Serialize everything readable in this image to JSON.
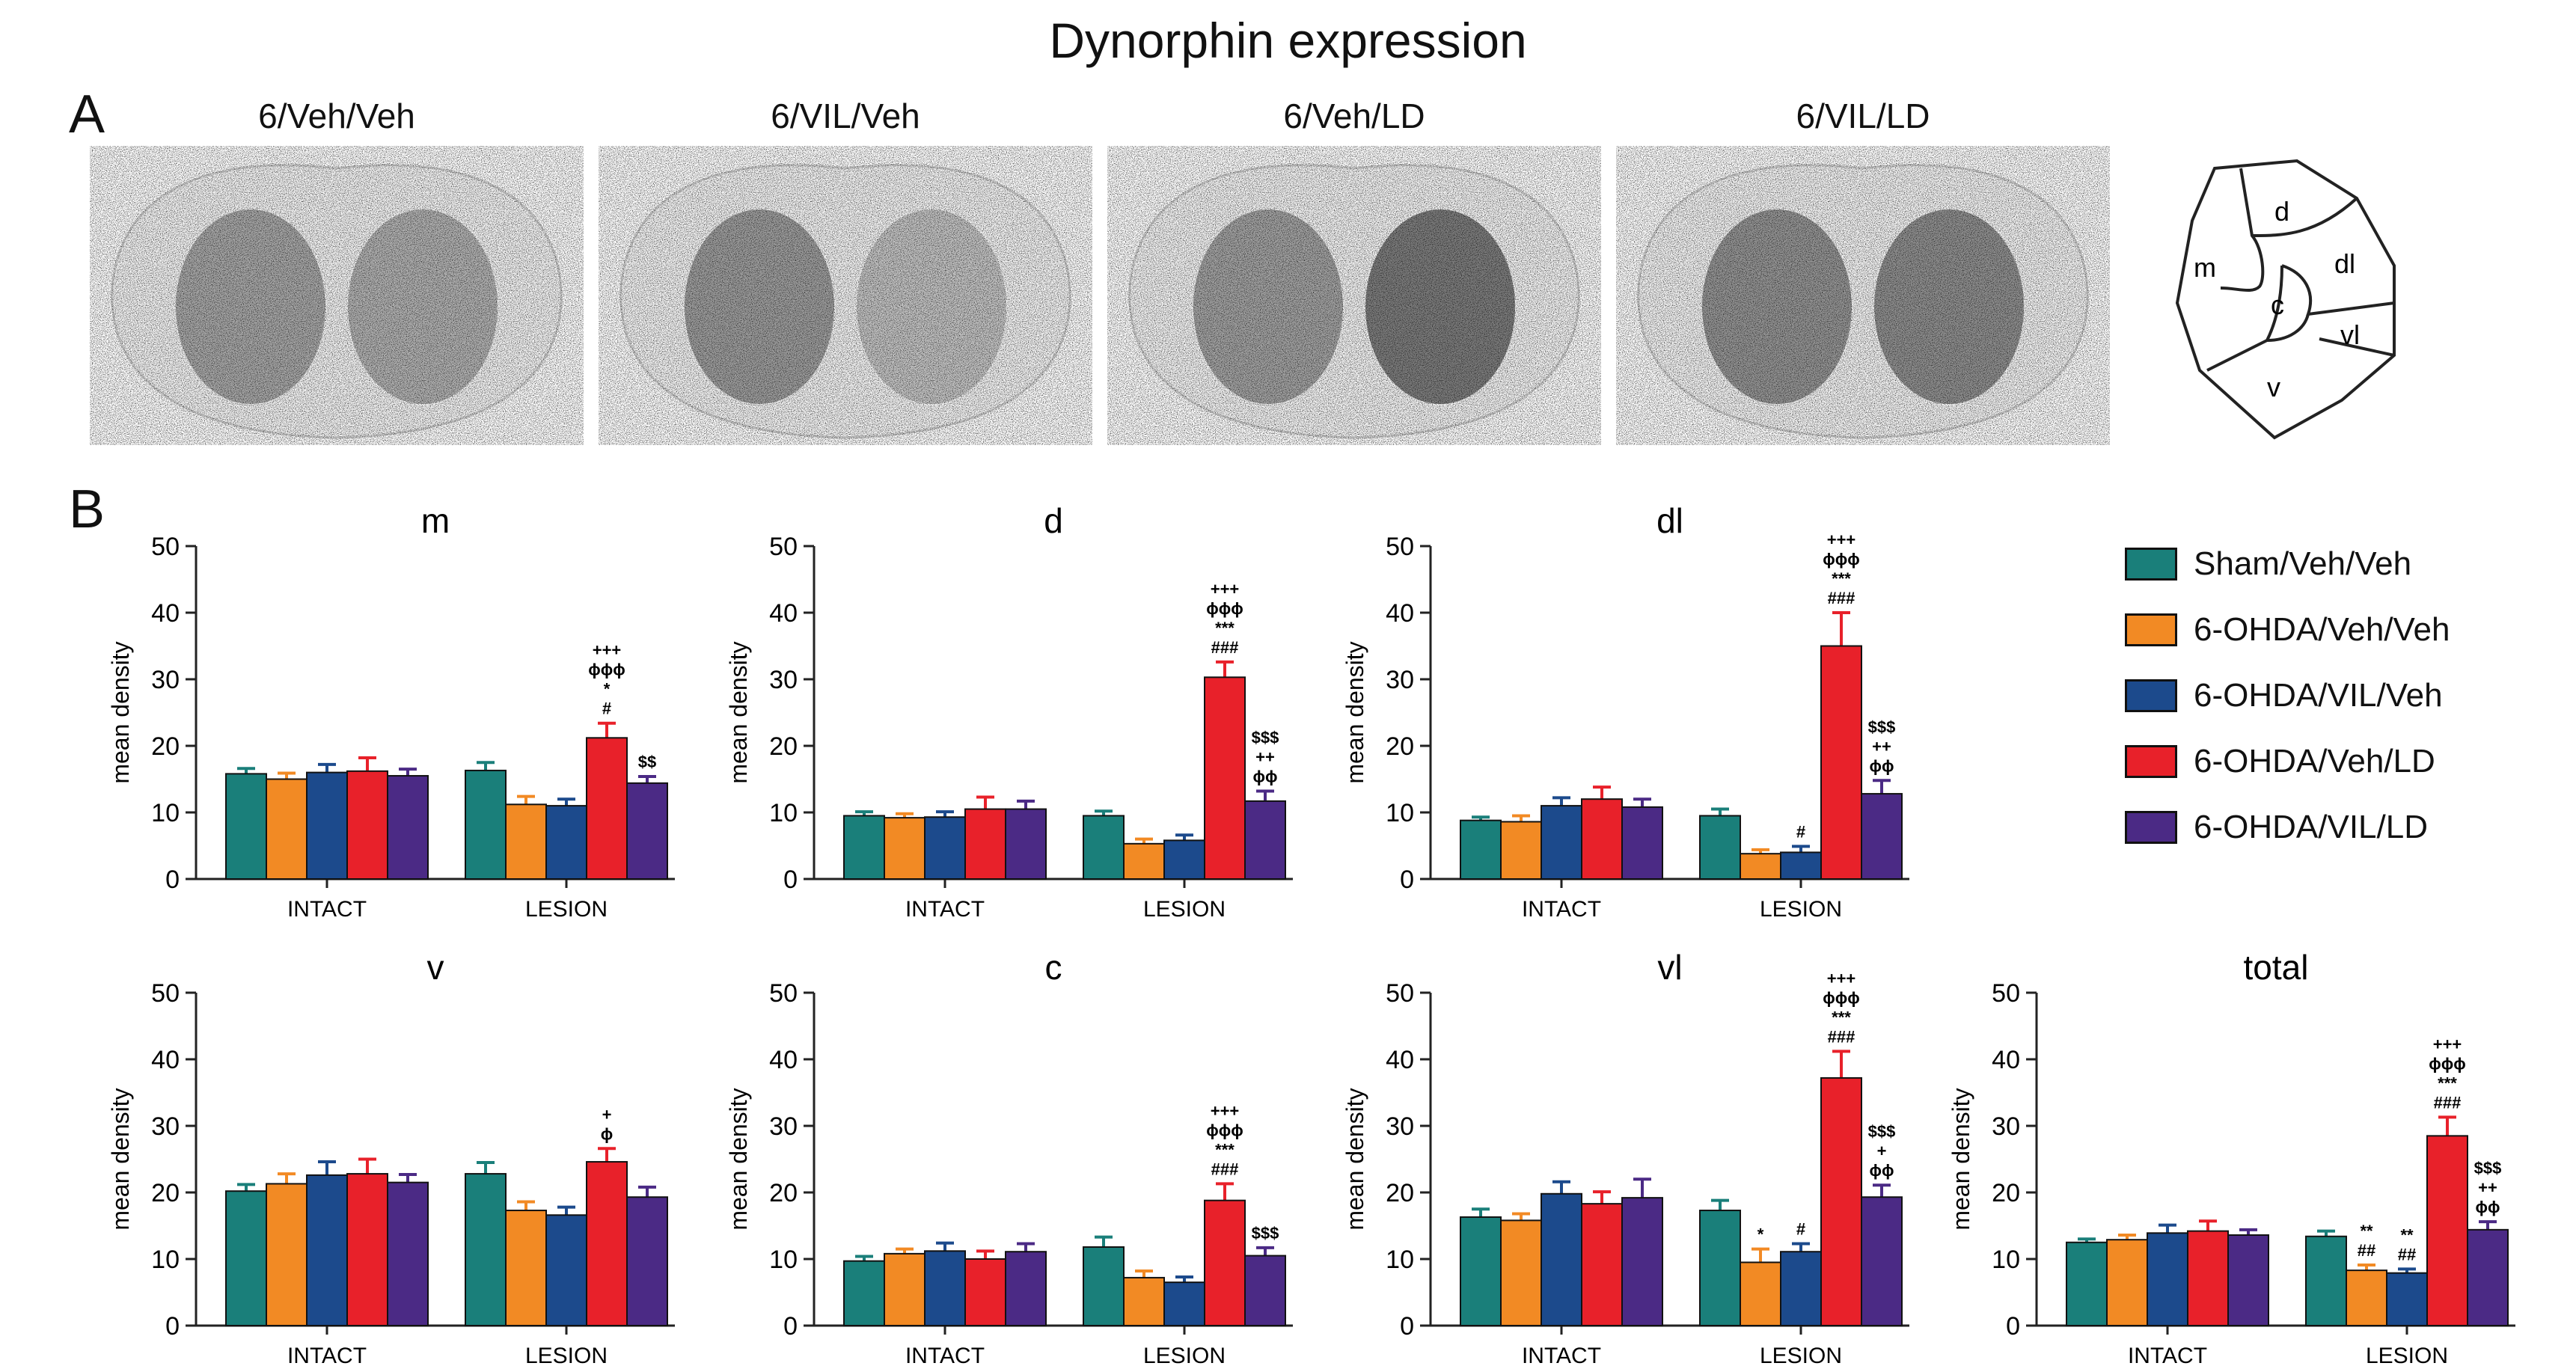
{
  "title": "Dynorphin expression",
  "panel_labels": {
    "a": "A",
    "b": "B"
  },
  "images": [
    {
      "label": "6/Veh/Veh",
      "left_intensity": 0.55,
      "right_intensity": 0.45
    },
    {
      "label": "6/VIL/Veh",
      "left_intensity": 0.65,
      "right_intensity": 0.25
    },
    {
      "label": "6/Veh/LD",
      "left_intensity": 0.6,
      "right_intensity": 1.0
    },
    {
      "label": "6/VIL/LD",
      "left_intensity": 0.75,
      "right_intensity": 0.8
    }
  ],
  "schematic": {
    "regions": [
      "m",
      "d",
      "dl",
      "c",
      "vl",
      "v"
    ]
  },
  "legend": [
    {
      "label": "Sham/Veh/Veh",
      "color": "#1a7f7a"
    },
    {
      "label": "6-OHDA/Veh/Veh",
      "color": "#f28a24"
    },
    {
      "label": "6-OHDA/VIL/Veh",
      "color": "#1c4a8c"
    },
    {
      "label": "6-OHDA/Veh/LD",
      "color": "#e8212a"
    },
    {
      "label": "6-OHDA/VIL/LD",
      "color": "#4b2a85"
    }
  ],
  "chart_data": [
    {
      "type": "bar",
      "title": "m",
      "ylabel": "mean density",
      "ylim": [
        0,
        50
      ],
      "yticks": [
        "0",
        "10",
        "20",
        "30",
        "40",
        "50"
      ],
      "categories": [
        "INTACT",
        "LESION"
      ],
      "series": [
        {
          "name": "Sham/Veh/Veh",
          "values": [
            15.8,
            16.3
          ],
          "err": [
            0.8,
            1.2
          ]
        },
        {
          "name": "6-OHDA/Veh/Veh",
          "values": [
            15.0,
            11.2
          ],
          "err": [
            0.9,
            1.2
          ]
        },
        {
          "name": "6-OHDA/VIL/Veh",
          "values": [
            16.0,
            11.0
          ],
          "err": [
            1.2,
            1.0
          ]
        },
        {
          "name": "6-OHDA/Veh/LD",
          "values": [
            16.2,
            21.2
          ],
          "err": [
            2.0,
            2.2
          ]
        },
        {
          "name": "6-OHDA/VIL/LD",
          "values": [
            15.5,
            14.4
          ],
          "err": [
            1.0,
            1.0
          ]
        }
      ],
      "annotations": [
        {
          "category": 1,
          "series": 3,
          "lines": [
            "+++",
            "ϕϕϕ",
            "*",
            "#"
          ]
        },
        {
          "category": 1,
          "series": 4,
          "lines": [
            "$$"
          ]
        }
      ]
    },
    {
      "type": "bar",
      "title": "d",
      "ylabel": "mean density",
      "ylim": [
        0,
        50
      ],
      "yticks": [
        "0",
        "10",
        "20",
        "30",
        "40",
        "50"
      ],
      "categories": [
        "INTACT",
        "LESION"
      ],
      "series": [
        {
          "name": "Sham/Veh/Veh",
          "values": [
            9.5,
            9.5
          ],
          "err": [
            0.6,
            0.7
          ]
        },
        {
          "name": "6-OHDA/Veh/Veh",
          "values": [
            9.2,
            5.3
          ],
          "err": [
            0.6,
            0.7
          ]
        },
        {
          "name": "6-OHDA/VIL/Veh",
          "values": [
            9.3,
            5.8
          ],
          "err": [
            0.8,
            0.8
          ]
        },
        {
          "name": "6-OHDA/Veh/LD",
          "values": [
            10.5,
            30.3
          ],
          "err": [
            1.8,
            2.3
          ]
        },
        {
          "name": "6-OHDA/VIL/LD",
          "values": [
            10.5,
            11.7
          ],
          "err": [
            1.2,
            1.5
          ]
        }
      ],
      "annotations": [
        {
          "category": 1,
          "series": 3,
          "lines": [
            "+++",
            "ϕϕϕ",
            "***",
            "###"
          ]
        },
        {
          "category": 1,
          "series": 4,
          "lines": [
            "$$$",
            "++",
            "ϕϕ"
          ]
        }
      ]
    },
    {
      "type": "bar",
      "title": "dl",
      "ylabel": "mean density",
      "ylim": [
        0,
        50
      ],
      "yticks": [
        "0",
        "10",
        "20",
        "30",
        "40",
        "50"
      ],
      "categories": [
        "INTACT",
        "LESION"
      ],
      "series": [
        {
          "name": "Sham/Veh/Veh",
          "values": [
            8.8,
            9.5
          ],
          "err": [
            0.5,
            1.0
          ]
        },
        {
          "name": "6-OHDA/Veh/Veh",
          "values": [
            8.6,
            3.8
          ],
          "err": [
            0.9,
            0.6
          ]
        },
        {
          "name": "6-OHDA/VIL/Veh",
          "values": [
            11.0,
            4.0
          ],
          "err": [
            1.2,
            0.9
          ]
        },
        {
          "name": "6-OHDA/Veh/LD",
          "values": [
            12.0,
            35.0
          ],
          "err": [
            1.8,
            5.0
          ]
        },
        {
          "name": "6-OHDA/VIL/LD",
          "values": [
            10.8,
            12.8
          ],
          "err": [
            1.2,
            2.0
          ]
        }
      ],
      "annotations": [
        {
          "category": 1,
          "series": 2,
          "lines": [
            "#"
          ]
        },
        {
          "category": 1,
          "series": 3,
          "lines": [
            "+++",
            "ϕϕϕ",
            "***",
            "###"
          ]
        },
        {
          "category": 1,
          "series": 4,
          "lines": [
            "$$$",
            "++",
            "ϕϕ"
          ]
        }
      ]
    },
    {
      "type": "bar",
      "title": "v",
      "ylabel": "mean density",
      "ylim": [
        0,
        50
      ],
      "yticks": [
        "0",
        "10",
        "20",
        "30",
        "40",
        "50"
      ],
      "categories": [
        "INTACT",
        "LESION"
      ],
      "series": [
        {
          "name": "Sham/Veh/Veh",
          "values": [
            20.2,
            22.8
          ],
          "err": [
            1.0,
            1.7
          ]
        },
        {
          "name": "6-OHDA/Veh/Veh",
          "values": [
            21.3,
            17.3
          ],
          "err": [
            1.5,
            1.3
          ]
        },
        {
          "name": "6-OHDA/VIL/Veh",
          "values": [
            22.6,
            16.6
          ],
          "err": [
            2.0,
            1.2
          ]
        },
        {
          "name": "6-OHDA/Veh/LD",
          "values": [
            22.8,
            24.6
          ],
          "err": [
            2.2,
            2.0
          ]
        },
        {
          "name": "6-OHDA/VIL/LD",
          "values": [
            21.5,
            19.3
          ],
          "err": [
            1.2,
            1.5
          ]
        }
      ],
      "annotations": [
        {
          "category": 1,
          "series": 3,
          "lines": [
            "+",
            "ϕ"
          ]
        }
      ]
    },
    {
      "type": "bar",
      "title": "c",
      "ylabel": "mean density",
      "ylim": [
        0,
        50
      ],
      "yticks": [
        "0",
        "10",
        "20",
        "30",
        "40",
        "50"
      ],
      "categories": [
        "INTACT",
        "LESION"
      ],
      "series": [
        {
          "name": "Sham/Veh/Veh",
          "values": [
            9.7,
            11.8
          ],
          "err": [
            0.7,
            1.5
          ]
        },
        {
          "name": "6-OHDA/Veh/Veh",
          "values": [
            10.8,
            7.2
          ],
          "err": [
            0.7,
            1.0
          ]
        },
        {
          "name": "6-OHDA/VIL/Veh",
          "values": [
            11.2,
            6.5
          ],
          "err": [
            1.2,
            0.8
          ]
        },
        {
          "name": "6-OHDA/Veh/LD",
          "values": [
            10.0,
            18.8
          ],
          "err": [
            1.2,
            2.5
          ]
        },
        {
          "name": "6-OHDA/VIL/LD",
          "values": [
            11.1,
            10.5
          ],
          "err": [
            1.2,
            1.2
          ]
        }
      ],
      "annotations": [
        {
          "category": 1,
          "series": 3,
          "lines": [
            "+++",
            "ϕϕϕ",
            "***",
            "###"
          ]
        },
        {
          "category": 1,
          "series": 4,
          "lines": [
            "$$$"
          ]
        }
      ]
    },
    {
      "type": "bar",
      "title": "vl",
      "ylabel": "mean density",
      "ylim": [
        0,
        50
      ],
      "yticks": [
        "0",
        "10",
        "20",
        "30",
        "40",
        "50"
      ],
      "categories": [
        "INTACT",
        "LESION"
      ],
      "series": [
        {
          "name": "Sham/Veh/Veh",
          "values": [
            16.3,
            17.3
          ],
          "err": [
            1.2,
            1.5
          ]
        },
        {
          "name": "6-OHDA/Veh/Veh",
          "values": [
            15.8,
            9.5
          ],
          "err": [
            1.0,
            2.0
          ]
        },
        {
          "name": "6-OHDA/VIL/Veh",
          "values": [
            19.8,
            11.1
          ],
          "err": [
            1.8,
            1.2
          ]
        },
        {
          "name": "6-OHDA/Veh/LD",
          "values": [
            18.3,
            37.2
          ],
          "err": [
            1.8,
            4.0
          ]
        },
        {
          "name": "6-OHDA/VIL/LD",
          "values": [
            19.2,
            19.3
          ],
          "err": [
            2.8,
            1.8
          ]
        }
      ],
      "annotations": [
        {
          "category": 1,
          "series": 1,
          "lines": [
            "*"
          ]
        },
        {
          "category": 1,
          "series": 2,
          "lines": [
            "#"
          ]
        },
        {
          "category": 1,
          "series": 3,
          "lines": [
            "+++",
            "ϕϕϕ",
            "***",
            "###"
          ]
        },
        {
          "category": 1,
          "series": 4,
          "lines": [
            "$$$",
            "+",
            "ϕϕ"
          ]
        }
      ]
    },
    {
      "type": "bar",
      "title": "total",
      "ylabel": "mean density",
      "ylim": [
        0,
        50
      ],
      "yticks": [
        "0",
        "10",
        "20",
        "30",
        "40",
        "50"
      ],
      "categories": [
        "INTACT",
        "LESION"
      ],
      "series": [
        {
          "name": "Sham/Veh/Veh",
          "values": [
            12.5,
            13.4
          ],
          "err": [
            0.5,
            0.8
          ]
        },
        {
          "name": "6-OHDA/Veh/Veh",
          "values": [
            12.9,
            8.3
          ],
          "err": [
            0.7,
            0.8
          ]
        },
        {
          "name": "6-OHDA/VIL/Veh",
          "values": [
            13.9,
            7.9
          ],
          "err": [
            1.2,
            0.6
          ]
        },
        {
          "name": "6-OHDA/Veh/LD",
          "values": [
            14.2,
            28.5
          ],
          "err": [
            1.5,
            2.8
          ]
        },
        {
          "name": "6-OHDA/VIL/LD",
          "values": [
            13.6,
            14.4
          ],
          "err": [
            0.8,
            1.2
          ]
        }
      ],
      "annotations": [
        {
          "category": 1,
          "series": 1,
          "lines": [
            "**",
            "##"
          ]
        },
        {
          "category": 1,
          "series": 2,
          "lines": [
            "**",
            "##"
          ]
        },
        {
          "category": 1,
          "series": 3,
          "lines": [
            "+++",
            "ϕϕϕ",
            "***",
            "###"
          ]
        },
        {
          "category": 1,
          "series": 4,
          "lines": [
            "$$$",
            "++",
            "ϕϕ"
          ]
        }
      ]
    }
  ]
}
